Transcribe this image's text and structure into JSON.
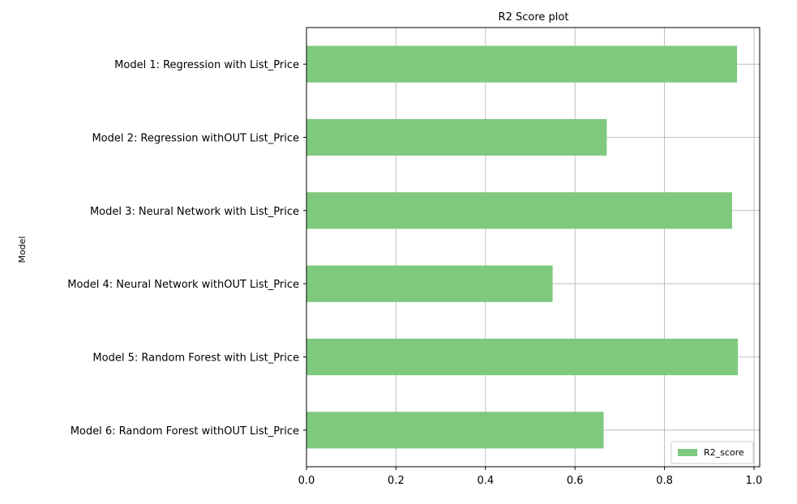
{
  "chart_data": {
    "type": "bar",
    "orientation": "horizontal",
    "title": "R2 Score plot",
    "xlabel": "",
    "ylabel": "Model",
    "xlim": [
      0.0,
      1.0
    ],
    "xticks": [
      "0.0",
      "0.2",
      "0.4",
      "0.6",
      "0.8",
      "1.0"
    ],
    "grid": true,
    "legend_position": "lower-right",
    "categories": [
      "Model 1: Regression with List_Price",
      "Model 2: Regression withOUT List_Price",
      "Model 3: Neural Network with List_Price",
      "Model 4: Neural Network withOUT List_Price",
      "Model 5: Random Forest with List_Price",
      "Model 6: Random Forest withOUT List_Price"
    ],
    "series": [
      {
        "name": "R2_score",
        "color": "#7fc97f",
        "values": [
          0.962,
          0.671,
          0.951,
          0.55,
          0.964,
          0.664
        ]
      }
    ]
  }
}
